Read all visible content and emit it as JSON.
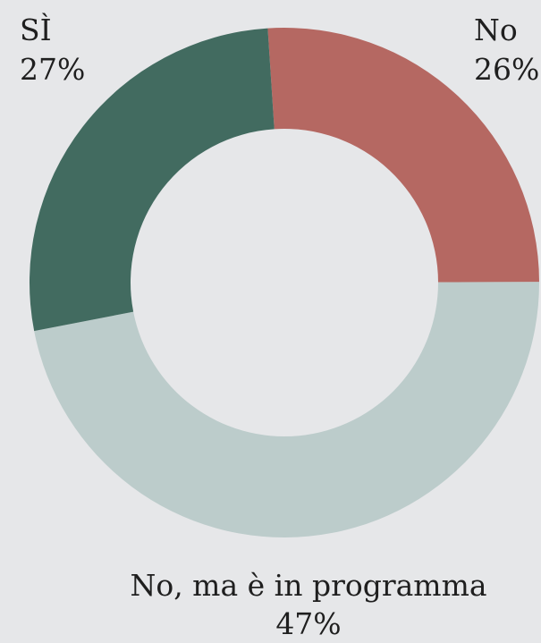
{
  "chart_data": {
    "type": "pie",
    "categories": [
      "No",
      "No, ma è in programma",
      "SÌ"
    ],
    "values": [
      26,
      47,
      27
    ],
    "value_labels": [
      "26%",
      "47%",
      "27%"
    ],
    "colors": [
      "#b56862",
      "#bccccb",
      "#426b60"
    ]
  }
}
